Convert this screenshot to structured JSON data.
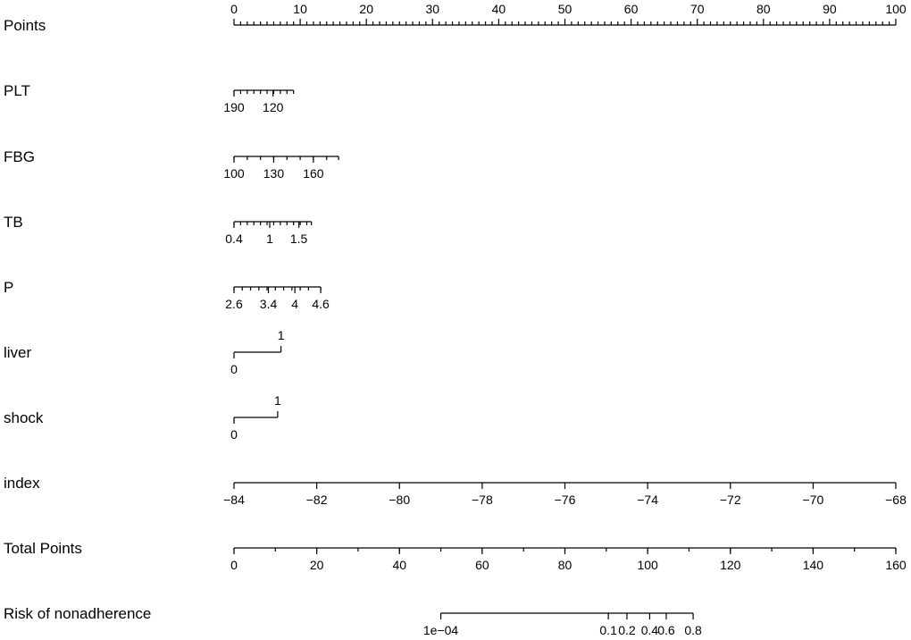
{
  "chart_data": {
    "type": "nomogram",
    "title": "",
    "rows": [
      {
        "label": "Points",
        "minor_ticks": [
          1,
          2,
          3,
          4,
          5,
          6,
          7,
          8,
          9,
          11,
          12,
          13,
          14,
          15,
          16,
          17,
          18,
          19,
          21,
          22,
          23,
          24,
          25,
          26,
          27,
          28,
          29,
          31,
          32,
          33,
          34,
          35,
          36,
          37,
          38,
          39,
          41,
          42,
          43,
          44,
          45,
          46,
          47,
          48,
          49,
          51,
          52,
          53,
          54,
          55,
          56,
          57,
          58,
          59,
          61,
          62,
          63,
          64,
          65,
          66,
          67,
          68,
          69,
          71,
          72,
          73,
          74,
          75,
          76,
          77,
          78,
          79,
          81,
          82,
          83,
          84,
          85,
          86,
          87,
          88,
          89,
          91,
          92,
          93,
          94,
          95,
          96,
          97,
          98,
          99
        ],
        "labeled_ticks": [
          {
            "text": "0",
            "points": 0
          },
          {
            "text": "10",
            "points": 10
          },
          {
            "text": "20",
            "points": 20
          },
          {
            "text": "30",
            "points": 30
          },
          {
            "text": "40",
            "points": 40
          },
          {
            "text": "50",
            "points": 50
          },
          {
            "text": "60",
            "points": 60
          },
          {
            "text": "70",
            "points": 70
          },
          {
            "text": "80",
            "points": 80
          },
          {
            "text": "90",
            "points": 90
          },
          {
            "text": "100",
            "points": 100
          }
        ],
        "labels_above": true
      },
      {
        "label": "PLT",
        "minor_ticks": [
          0,
          1,
          2,
          3,
          4,
          5,
          6,
          7,
          8,
          9
        ],
        "labeled_ticks": [
          {
            "text": "190",
            "points": 0
          },
          {
            "text": "120",
            "points": 5.9
          }
        ]
      },
      {
        "label": "FBG",
        "minor_ticks": [
          0,
          2,
          4,
          6,
          8,
          10,
          12,
          14,
          15.8
        ],
        "labeled_ticks": [
          {
            "text": "100",
            "points": 0
          },
          {
            "text": "130",
            "points": 6
          },
          {
            "text": "160",
            "points": 12
          }
        ]
      },
      {
        "label": "TB",
        "minor_ticks": [
          0,
          1,
          2,
          3,
          4,
          5,
          6,
          7,
          8,
          9,
          10,
          11,
          11.7
        ],
        "labeled_ticks": [
          {
            "text": "0.4",
            "points": 0
          },
          {
            "text": "1",
            "points": 5.4
          },
          {
            "text": "1.5",
            "points": 9.8
          }
        ]
      },
      {
        "label": "P",
        "minor_ticks": [
          0,
          1.25,
          2.5,
          3.75,
          5,
          6.25,
          7.5,
          8.75,
          10,
          11.25,
          13.1
        ],
        "labeled_ticks": [
          {
            "text": "2.6",
            "points": 0
          },
          {
            "text": "3.4",
            "points": 5.2
          },
          {
            "text": "4",
            "points": 9.2
          },
          {
            "text": "4.6",
            "points": 13.1
          }
        ]
      },
      {
        "label": "liver",
        "type": "binary",
        "levels": [
          {
            "text": "0",
            "points": 0
          },
          {
            "text": "1",
            "points": 7.1
          }
        ]
      },
      {
        "label": "shock",
        "type": "binary",
        "levels": [
          {
            "text": "0",
            "points": 0
          },
          {
            "text": "1",
            "points": 6.6
          }
        ]
      },
      {
        "label": "index",
        "minor_ticks": [],
        "labeled_ticks": [
          {
            "text": "−84",
            "points": 0
          },
          {
            "text": "−82",
            "points": 12.5
          },
          {
            "text": "−80",
            "points": 25
          },
          {
            "text": "−78",
            "points": 37.5
          },
          {
            "text": "−76",
            "points": 50
          },
          {
            "text": "−74",
            "points": 62.5
          },
          {
            "text": "−72",
            "points": 75
          },
          {
            "text": "−70",
            "points": 87.5
          },
          {
            "text": "−68",
            "points": 100
          }
        ]
      },
      {
        "label": "Total Points",
        "scale": "total",
        "minor_ticks": [
          0,
          10,
          20,
          30,
          40,
          50,
          60,
          70,
          80,
          90,
          100,
          110,
          120,
          130,
          140,
          150,
          160
        ],
        "labeled_ticks": [
          {
            "text": "0",
            "total": 0
          },
          {
            "text": "20",
            "total": 20
          },
          {
            "text": "40",
            "total": 40
          },
          {
            "text": "60",
            "total": 60
          },
          {
            "text": "80",
            "total": 80
          },
          {
            "text": "100",
            "total": 100
          },
          {
            "text": "120",
            "total": 120
          },
          {
            "text": "140",
            "total": 140
          },
          {
            "text": "160",
            "total": 160
          }
        ]
      },
      {
        "label": "Risk of nonadherence",
        "scale": "total",
        "line_range": [
          50,
          111
        ],
        "minor_ticks": [],
        "labeled_ticks": [
          {
            "text": "1e−04",
            "total": 50
          },
          {
            "text": "0.1",
            "total": 90.5
          },
          {
            "text": "0.2",
            "total": 95
          },
          {
            "text": "0.4",
            "total": 100.5
          },
          {
            "text": "0.6",
            "total": 104.5
          },
          {
            "text": "0.8",
            "total": 111
          }
        ]
      }
    ]
  }
}
